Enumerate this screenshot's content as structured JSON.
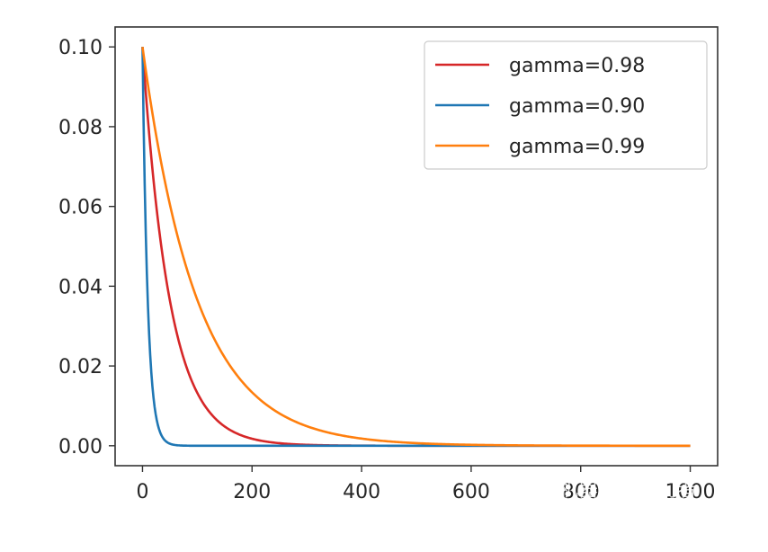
{
  "chart_data": {
    "type": "line",
    "title": "",
    "xlabel": "",
    "ylabel": "",
    "xlim": [
      -50,
      1050
    ],
    "ylim": [
      -0.005,
      0.105
    ],
    "xticks": [
      0,
      200,
      400,
      600,
      800,
      1000
    ],
    "xtick_labels": [
      "0",
      "200",
      "400",
      "600",
      "800",
      "1000"
    ],
    "yticks": [
      0.0,
      0.02,
      0.04,
      0.06,
      0.08,
      0.1
    ],
    "ytick_labels": [
      "0.00",
      "0.02",
      "0.04",
      "0.06",
      "0.08",
      "0.10"
    ],
    "grid": false,
    "legend_position": "top-right",
    "x_range": [
      0,
      1000
    ],
    "initial_value": 0.1,
    "series": [
      {
        "name": "gamma=0.98",
        "gamma": 0.98,
        "color": "#d62728"
      },
      {
        "name": "gamma=0.90",
        "gamma": 0.9,
        "color": "#1f77b4"
      },
      {
        "name": "gamma=0.99",
        "gamma": 0.99,
        "color": "#ff7f0e"
      }
    ]
  },
  "watermark": "知乎 @机器学习入门者"
}
